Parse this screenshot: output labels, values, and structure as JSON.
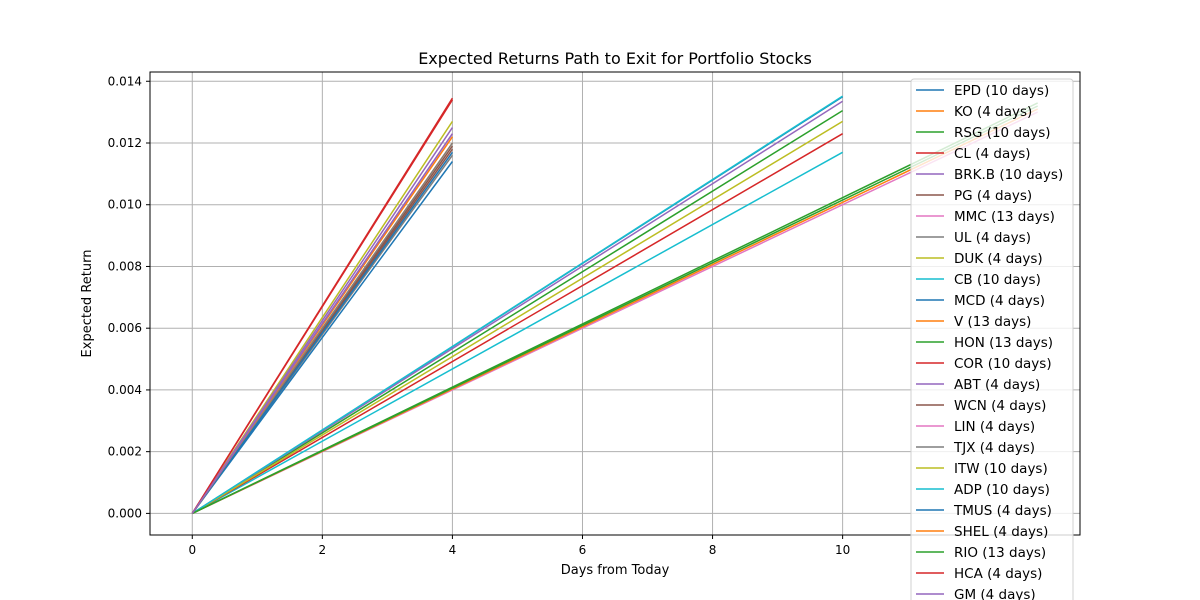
{
  "chart_data": {
    "type": "line",
    "title": "Expected Returns Path to Exit for Portfolio Stocks",
    "xlabel": "Days from Today",
    "ylabel": "Expected Return",
    "xlim": [
      -0.65,
      13.65
    ],
    "ylim": [
      -0.0007,
      0.0143
    ],
    "xticks": [
      0,
      2,
      4,
      6,
      8,
      10
    ],
    "xtick_labels": [
      "0",
      "2",
      "4",
      "6",
      "8",
      "10"
    ],
    "yticks": [
      0.0,
      0.002,
      0.004,
      0.006,
      0.008,
      0.01,
      0.012,
      0.014
    ],
    "ytick_labels": [
      "0.000",
      "0.002",
      "0.004",
      "0.006",
      "0.008",
      "0.010",
      "0.012",
      "0.014"
    ],
    "grid": true,
    "legend_position": "upper-right",
    "series": [
      {
        "name": "EPD (10 days)",
        "color": "#1f77b4",
        "x": [
          0,
          10
        ],
        "y": [
          0,
          0.0135
        ]
      },
      {
        "name": "KO (4 days)",
        "color": "#ff7f0e",
        "x": [
          0,
          4
        ],
        "y": [
          0,
          0.012
        ]
      },
      {
        "name": "RSG (10 days)",
        "color": "#2ca02c",
        "x": [
          0,
          10
        ],
        "y": [
          0,
          0.01305
        ]
      },
      {
        "name": "CL (4 days)",
        "color": "#d62728",
        "x": [
          0,
          4
        ],
        "y": [
          0,
          0.0134
        ]
      },
      {
        "name": "BRK.B (10 days)",
        "color": "#9467bd",
        "x": [
          0,
          10
        ],
        "y": [
          0,
          0.01335
        ]
      },
      {
        "name": "PG (4 days)",
        "color": "#8c564b",
        "x": [
          0,
          4
        ],
        "y": [
          0,
          0.0118
        ]
      },
      {
        "name": "MMC (13 days)",
        "color": "#e377c2",
        "x": [
          0,
          13
        ],
        "y": [
          0,
          0.013
        ]
      },
      {
        "name": "UL (4 days)",
        "color": "#7f7f7f",
        "x": [
          0,
          4
        ],
        "y": [
          0,
          0.0116
        ]
      },
      {
        "name": "DUK (4 days)",
        "color": "#bcbd22",
        "x": [
          0,
          4
        ],
        "y": [
          0,
          0.0127
        ]
      },
      {
        "name": "CB (10 days)",
        "color": "#17becf",
        "x": [
          0,
          10
        ],
        "y": [
          0,
          0.0117
        ]
      },
      {
        "name": "MCD (4 days)",
        "color": "#1f77b4",
        "x": [
          0,
          4
        ],
        "y": [
          0,
          0.0114
        ]
      },
      {
        "name": "V (13 days)",
        "color": "#ff7f0e",
        "x": [
          0,
          13
        ],
        "y": [
          0,
          0.0131
        ]
      },
      {
        "name": "HON (13 days)",
        "color": "#2ca02c",
        "x": [
          0,
          13
        ],
        "y": [
          0,
          0.0132
        ]
      },
      {
        "name": "COR (10 days)",
        "color": "#d62728",
        "x": [
          0,
          10
        ],
        "y": [
          0,
          0.0123
        ]
      },
      {
        "name": "ABT (4 days)",
        "color": "#9467bd",
        "x": [
          0,
          4
        ],
        "y": [
          0,
          0.0125
        ]
      },
      {
        "name": "WCN (4 days)",
        "color": "#8c564b",
        "x": [
          0,
          4
        ],
        "y": [
          0,
          0.0119
        ]
      },
      {
        "name": "LIN (4 days)",
        "color": "#e377c2",
        "x": [
          0,
          4
        ],
        "y": [
          0,
          0.0123
        ]
      },
      {
        "name": "TJX (4 days)",
        "color": "#7f7f7f",
        "x": [
          0,
          4
        ],
        "y": [
          0,
          0.012
        ]
      },
      {
        "name": "ITW (10 days)",
        "color": "#bcbd22",
        "x": [
          0,
          10
        ],
        "y": [
          0,
          0.0127
        ]
      },
      {
        "name": "ADP (10 days)",
        "color": "#17becf",
        "x": [
          0,
          10
        ],
        "y": [
          0,
          0.01352
        ]
      },
      {
        "name": "TMUS (4 days)",
        "color": "#1f77b4",
        "x": [
          0,
          4
        ],
        "y": [
          0,
          0.0117
        ]
      },
      {
        "name": "SHEL (4 days)",
        "color": "#ff7f0e",
        "x": [
          0,
          4
        ],
        "y": [
          0,
          0.0122
        ]
      },
      {
        "name": "RIO (13 days)",
        "color": "#2ca02c",
        "x": [
          0,
          13
        ],
        "y": [
          0,
          0.0133
        ]
      },
      {
        "name": "HCA (4 days)",
        "color": "#d62728",
        "x": [
          0,
          4
        ],
        "y": [
          0,
          0.01345
        ]
      },
      {
        "name": "GM (4 days)",
        "color": "#9467bd",
        "x": [
          0,
          4
        ],
        "y": [
          0,
          0.0123
        ]
      }
    ]
  }
}
